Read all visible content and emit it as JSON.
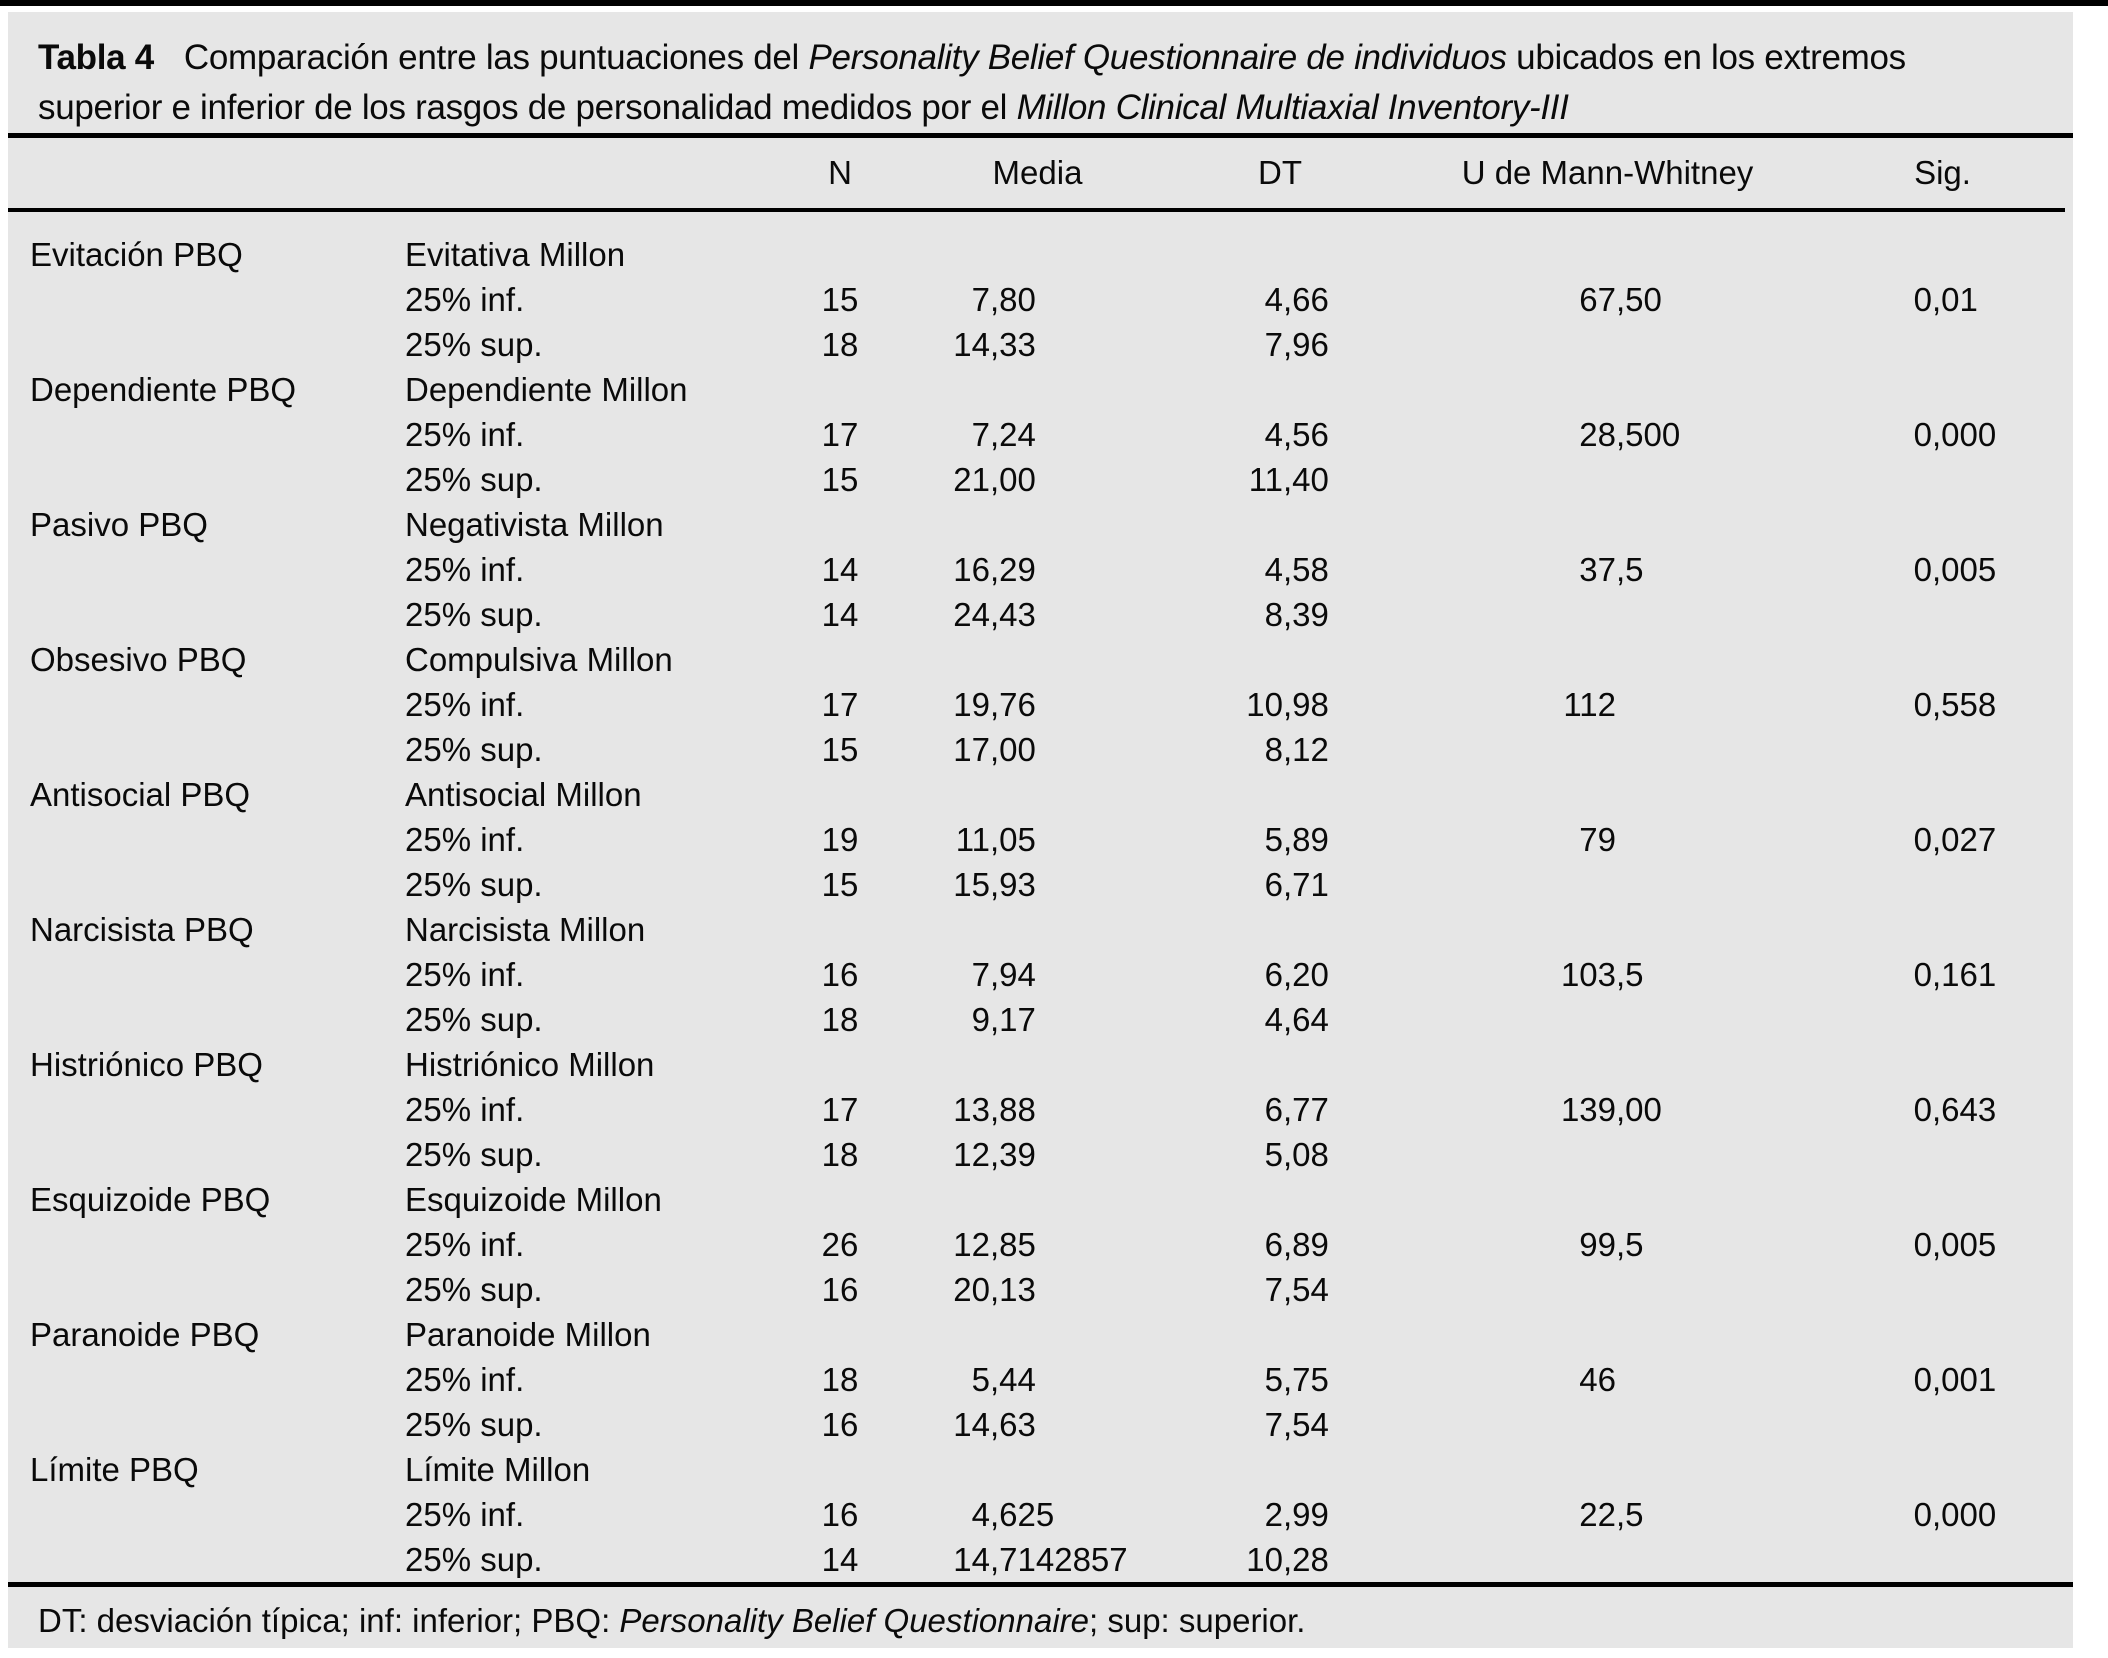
{
  "colors": {
    "page_bg": "#ffffff",
    "panel_bg": "#e6e6e6",
    "rule": "#000000",
    "text": "#0a0a0a"
  },
  "title": {
    "label": "Tabla 4",
    "line1": [
      {
        "text": "Comparación entre las puntuaciones del ",
        "italic": false
      },
      {
        "text": "Personality Belief Questionnaire de individuos",
        "italic": true
      },
      {
        "text": " ubicados en los extremos",
        "italic": false
      }
    ],
    "line2": [
      {
        "text": "superior e inferior de los rasgos de personalidad medidos por el ",
        "italic": false
      },
      {
        "text": "Millon Clinical Multiaxial Inventory-III",
        "italic": true
      }
    ]
  },
  "table": {
    "headers": {
      "n": "N",
      "media": "Media",
      "dt": "DT",
      "u": "U de Mann-Whitney",
      "sig": "Sig."
    },
    "groups": [
      {
        "pbq": "Evitación PBQ",
        "millon": "Evitativa Millon",
        "inf": {
          "label": "25% inf.",
          "n": "15",
          "media": "7,80",
          "dt": "4,66",
          "u": "67,50",
          "sig": "0,01"
        },
        "sup": {
          "label": "25% sup.",
          "n": "18",
          "media": "14,33",
          "dt": "7,96"
        }
      },
      {
        "pbq": "Dependiente PBQ",
        "millon": "Dependiente Millon",
        "inf": {
          "label": "25% inf.",
          "n": "17",
          "media": "7,24",
          "dt": "4,56",
          "u": "28,500",
          "sig": "0,000"
        },
        "sup": {
          "label": "25% sup.",
          "n": "15",
          "media": "21,00",
          "dt": "11,40"
        }
      },
      {
        "pbq": "Pasivo PBQ",
        "millon": "Negativista Millon",
        "inf": {
          "label": "25% inf.",
          "n": "14",
          "media": "16,29",
          "dt": "4,58",
          "u": "37,5",
          "sig": "0,005"
        },
        "sup": {
          "label": "25% sup.",
          "n": "14",
          "media": "24,43",
          "dt": "8,39"
        }
      },
      {
        "pbq": "Obsesivo PBQ",
        "millon": "Compulsiva Millon",
        "inf": {
          "label": "25% inf.",
          "n": "17",
          "media": "19,76",
          "dt": "10,98",
          "u": "112",
          "sig": "0,558"
        },
        "sup": {
          "label": "25% sup.",
          "n": "15",
          "media": "17,00",
          "dt": "8,12"
        }
      },
      {
        "pbq": "Antisocial PBQ",
        "millon": "Antisocial Millon",
        "inf": {
          "label": "25% inf.",
          "n": "19",
          "media": "11,05",
          "dt": "5,89",
          "u": "79",
          "sig": "0,027"
        },
        "sup": {
          "label": "25% sup.",
          "n": "15",
          "media": "15,93",
          "dt": "6,71"
        }
      },
      {
        "pbq": "Narcisista PBQ",
        "millon": "Narcisista Millon",
        "inf": {
          "label": "25% inf.",
          "n": "16",
          "media": "7,94",
          "dt": "6,20",
          "u": "103,5",
          "sig": "0,161"
        },
        "sup": {
          "label": "25% sup.",
          "n": "18",
          "media": "9,17",
          "dt": "4,64"
        }
      },
      {
        "pbq": "Histriónico PBQ",
        "millon": "Histriónico Millon",
        "inf": {
          "label": "25% inf.",
          "n": "17",
          "media": "13,88",
          "dt": "6,77",
          "u": "139,00",
          "sig": "0,643"
        },
        "sup": {
          "label": "25% sup.",
          "n": "18",
          "media": "12,39",
          "dt": "5,08"
        }
      },
      {
        "pbq": "Esquizoide PBQ",
        "millon": "Esquizoide Millon",
        "inf": {
          "label": "25% inf.",
          "n": "26",
          "media": "12,85",
          "dt": "6,89",
          "u": "99,5",
          "sig": "0,005"
        },
        "sup": {
          "label": "25% sup.",
          "n": "16",
          "media": "20,13",
          "dt": "7,54"
        }
      },
      {
        "pbq": "Paranoide PBQ",
        "millon": "Paranoide Millon",
        "inf": {
          "label": "25% inf.",
          "n": "18",
          "media": "5,44",
          "dt": "5,75",
          "u": "46",
          "sig": "0,001"
        },
        "sup": {
          "label": "25% sup.",
          "n": "16",
          "media": "14,63",
          "dt": "7,54"
        }
      },
      {
        "pbq": "Límite PBQ",
        "millon": "Límite Millon",
        "inf": {
          "label": "25% inf.",
          "n": "16",
          "media": "4,625",
          "dt": "2,99",
          "u": "22,5",
          "sig": "0,000"
        },
        "sup": {
          "label": "25% sup.",
          "n": "14",
          "media": "14,7142857",
          "dt": "10,28"
        }
      }
    ]
  },
  "footnote": {
    "segments": [
      {
        "text": "DT: desviación típica; inf: inferior; PBQ: ",
        "italic": false
      },
      {
        "text": "Personality Belief Questionnaire",
        "italic": true
      },
      {
        "text": "; sup: superior.",
        "italic": false
      }
    ]
  }
}
